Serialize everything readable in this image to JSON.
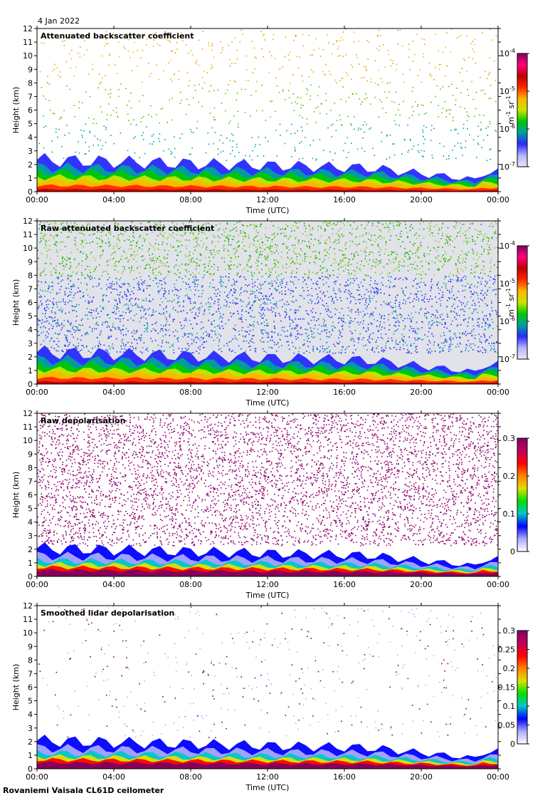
{
  "date_label": "4 Jan 2022",
  "footer": "Rovaniemi Vaisala CL61D ceilometer",
  "colors": {
    "colormap": [
      "#e8e8f0",
      "#b4b4ff",
      "#2828ff",
      "#00a0a0",
      "#00c800",
      "#c8e600",
      "#ffb400",
      "#ff2800",
      "#c00000",
      "#ff0080",
      "#800060"
    ],
    "depol_colormap": [
      "#ffffff",
      "#aaaaff",
      "#0000ff",
      "#00c8c8",
      "#00e000",
      "#e0e000",
      "#ff8000",
      "#ff0000",
      "#c00060",
      "#800060"
    ]
  },
  "chart_data": [
    {
      "type": "heatmap",
      "title": "Attenuated backscatter coefficient",
      "xlabel": "Time (UTC)",
      "ylabel": "Height (km)",
      "x_ticks": [
        "00:00",
        "04:00",
        "08:00",
        "12:00",
        "16:00",
        "20:00",
        "00:00"
      ],
      "y_ticks": [
        "0",
        "1",
        "2",
        "3",
        "4",
        "5",
        "6",
        "7",
        "8",
        "9",
        "10",
        "11",
        "12"
      ],
      "ylim": [
        0,
        12
      ],
      "colorbar": {
        "ticks": [
          "10-7",
          "10-6",
          "10-5",
          "10-4"
        ],
        "tick_exponents": [
          "-7",
          "-6",
          "-5",
          "-4"
        ],
        "log": true,
        "label": "m-1 sr-1",
        "label_base": [
          "m",
          "sr"
        ],
        "label_exponents": [
          "-1",
          "-1"
        ]
      }
    },
    {
      "type": "heatmap",
      "title": "Raw attenuated backscatter coefficient",
      "xlabel": "Time (UTC)",
      "ylabel": "Height (km)",
      "x_ticks": [
        "00:00",
        "04:00",
        "08:00",
        "12:00",
        "16:00",
        "20:00",
        "00:00"
      ],
      "y_ticks": [
        "0",
        "1",
        "2",
        "3",
        "4",
        "5",
        "6",
        "7",
        "8",
        "9",
        "10",
        "11",
        "12"
      ],
      "ylim": [
        0,
        12
      ],
      "colorbar": {
        "ticks": [
          "10-7",
          "10-6",
          "10-5",
          "10-4"
        ],
        "tick_exponents": [
          "-7",
          "-6",
          "-5",
          "-4"
        ],
        "log": true,
        "label": "m-1 sr-1",
        "label_base": [
          "m",
          "sr"
        ],
        "label_exponents": [
          "-1",
          "-1"
        ]
      }
    },
    {
      "type": "heatmap",
      "title": "Raw depolarisation",
      "xlabel": "Time (UTC)",
      "ylabel": "Height (km)",
      "x_ticks": [
        "00:00",
        "04:00",
        "08:00",
        "12:00",
        "16:00",
        "20:00",
        "00:00"
      ],
      "y_ticks": [
        "0",
        "1",
        "2",
        "3",
        "4",
        "5",
        "6",
        "7",
        "8",
        "9",
        "10",
        "11",
        "12"
      ],
      "ylim": [
        0,
        12
      ],
      "colorbar": {
        "ticks": [
          "0",
          "0.1",
          "0.2",
          "0.3"
        ],
        "log": false,
        "range": [
          0,
          0.3
        ]
      }
    },
    {
      "type": "heatmap",
      "title": "Smoothed lidar depolarisation",
      "xlabel": "Time (UTC)",
      "ylabel": "Height (km)",
      "x_ticks": [
        "00:00",
        "04:00",
        "08:00",
        "12:00",
        "16:00",
        "20:00",
        "00:00"
      ],
      "y_ticks": [
        "0",
        "1",
        "2",
        "3",
        "4",
        "5",
        "6",
        "7",
        "8",
        "9",
        "10",
        "11",
        "12"
      ],
      "ylim": [
        0,
        12
      ],
      "colorbar": {
        "ticks": [
          "0",
          "0.05",
          "0.1",
          "0.15",
          "0.2",
          "0.25",
          "0.3"
        ],
        "log": false,
        "range": [
          0,
          0.3
        ]
      }
    }
  ]
}
